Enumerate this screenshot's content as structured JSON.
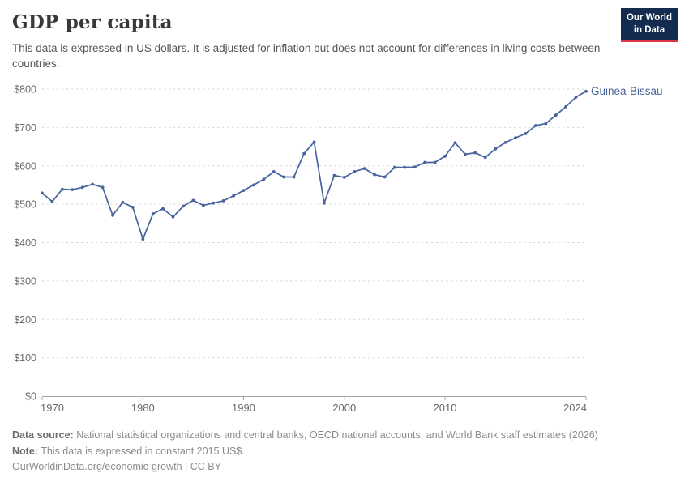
{
  "header": {
    "title": "GDP per capita",
    "subtitle": "This data is expressed in US dollars. It is adjusted for inflation but does not account for differences in living costs between countries."
  },
  "logo": {
    "line1": "Our World",
    "line2": "in Data",
    "bg_color": "#132c4f",
    "accent_color": "#dc354a"
  },
  "chart_data": {
    "type": "line",
    "title": "GDP per capita",
    "xlabel": "",
    "ylabel": "",
    "ylim": [
      0,
      800
    ],
    "yticks": [
      0,
      100,
      200,
      300,
      400,
      500,
      600,
      700,
      800
    ],
    "ytick_prefix": "$",
    "xlim": [
      1970,
      2024
    ],
    "xticks": [
      1970,
      1980,
      1990,
      2000,
      2010,
      2024
    ],
    "grid": "horizontal-dashed",
    "legend_position": "end-of-line-label",
    "series": [
      {
        "name": "Guinea-Bissau",
        "color": "#46639c",
        "x": [
          1970,
          1971,
          1972,
          1973,
          1974,
          1975,
          1976,
          1977,
          1978,
          1979,
          1980,
          1981,
          1982,
          1983,
          1984,
          1985,
          1986,
          1987,
          1988,
          1989,
          1990,
          1991,
          1992,
          1993,
          1994,
          1995,
          1996,
          1997,
          1998,
          1999,
          2000,
          2001,
          2002,
          2003,
          2004,
          2005,
          2006,
          2007,
          2008,
          2009,
          2010,
          2011,
          2012,
          2013,
          2014,
          2015,
          2016,
          2017,
          2018,
          2019,
          2020,
          2021,
          2022,
          2023,
          2024
        ],
        "values": [
          529,
          507,
          539,
          538,
          544,
          552,
          544,
          471,
          505,
          492,
          409,
          475,
          488,
          467,
          495,
          510,
          497,
          503,
          509,
          522,
          536,
          550,
          565,
          585,
          571,
          571,
          632,
          662,
          503,
          575,
          570,
          585,
          593,
          577,
          571,
          596,
          596,
          597,
          609,
          609,
          625,
          660,
          630,
          634,
          622,
          644,
          661,
          673,
          684,
          705,
          710,
          732,
          754,
          779,
          794
        ]
      }
    ]
  },
  "axis_colors": {
    "grid": "#d9d9d9",
    "axis": "#a3a3a3",
    "tick_label": "#696969"
  },
  "footer": {
    "source_label": "Data source:",
    "source_text": " National statistical organizations and central banks, OECD national accounts, and World Bank staff estimates (2026)",
    "note_label": "Note:",
    "note_text": " This data is expressed in constant 2015 US$.",
    "link_text": "OurWorldinData.org/economic-growth | CC BY"
  }
}
